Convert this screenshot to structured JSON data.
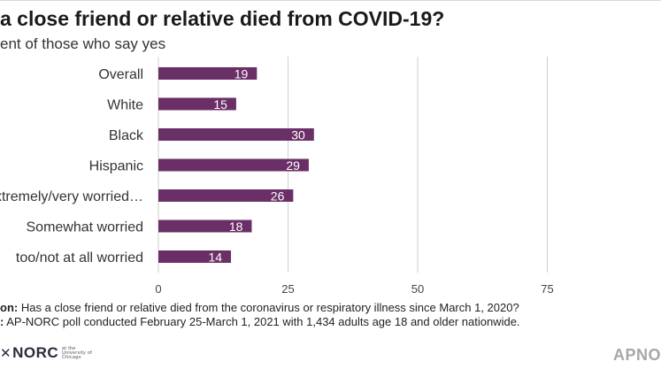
{
  "title": "a close friend or relative died from COVID-19?",
  "subtitle": "ent of those who say yes",
  "notes": {
    "question_prefix": "on:",
    "question_text": "Has a close friend or relative died from the coronavirus or respiratory illness since March 1, 2020?",
    "source_prefix": ":",
    "source_text": "AP-NORC poll conducted February 25-March 1, 2021 with 1,434 adults age 18 and older nationwide."
  },
  "logos": {
    "left_star": "✕",
    "left_text": "NORC",
    "left_small": "at the University of Chicago",
    "right_text": "APNO"
  },
  "colors": {
    "bar": "#6b2f67",
    "grid": "#cfcfcf",
    "bar_label": "#ffffff"
  },
  "chart_data": {
    "type": "bar",
    "orientation": "horizontal",
    "categories": [
      "Overall",
      "White",
      "Black",
      "Hispanic",
      "xtremely/very worried…",
      "Somewhat worried",
      "too/not at all worried"
    ],
    "values": [
      19,
      15,
      30,
      29,
      26,
      18,
      14
    ],
    "xlim": [
      0,
      100
    ],
    "xticks": [
      0,
      25,
      50,
      75
    ],
    "grid": true,
    "data_labels": true,
    "xlabel": "",
    "ylabel": ""
  }
}
